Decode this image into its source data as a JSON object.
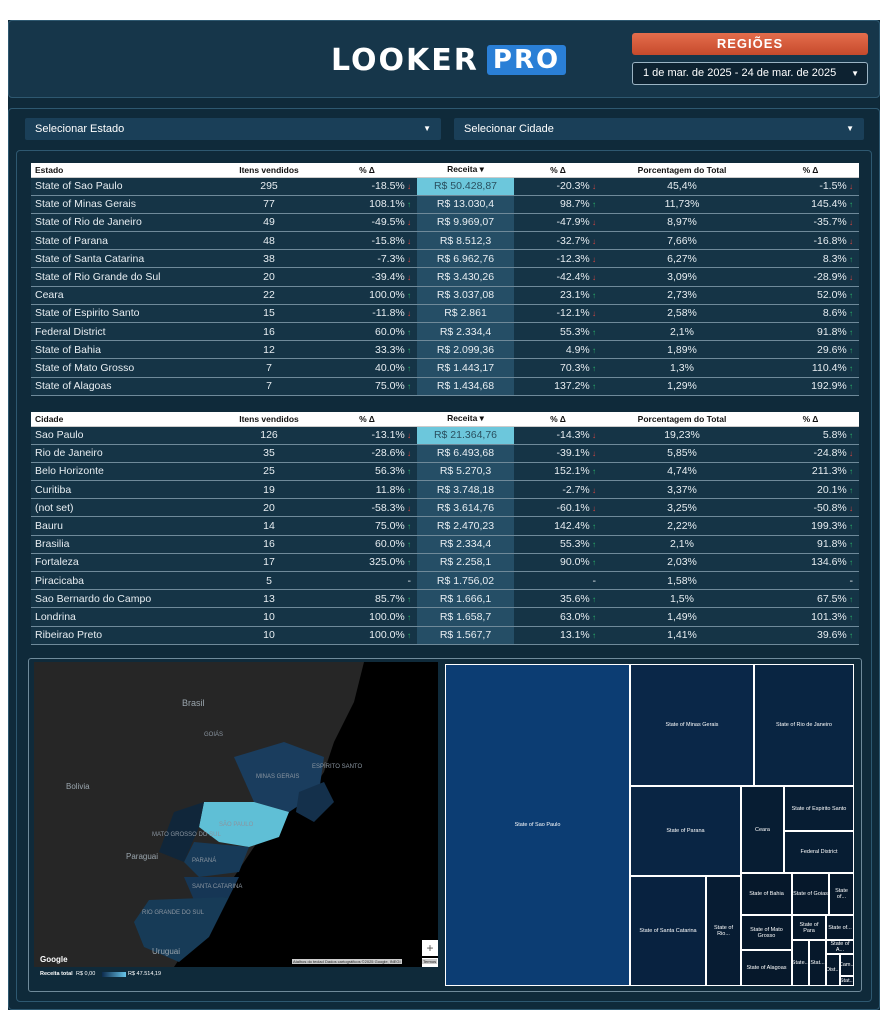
{
  "header": {
    "logo_main": "LOOKER",
    "logo_badge": "PRO",
    "regions_label": "REGIÕES",
    "date_range": "1 de mar. de 2025 - 24 de mar. de 2025"
  },
  "filters": {
    "state_select": "Selecionar Estado",
    "city_select": "Selecionar Cidade"
  },
  "states_table": {
    "columns": [
      "Estado",
      "Itens vendidos",
      "% Δ",
      "Receita ▾",
      "% Δ",
      "Porcentagem do Total",
      "% Δ"
    ],
    "rows": [
      {
        "name": "State of Sao Paulo",
        "items": "295",
        "d1": "-18.5%",
        "d1_dir": "down",
        "revenue": "R$ 50.428,87",
        "d2": "-20.3%",
        "d2_dir": "down",
        "pct": "45,4%",
        "d3": "-1.5%",
        "d3_dir": "down"
      },
      {
        "name": "State of Minas Gerais",
        "items": "77",
        "d1": "108.1%",
        "d1_dir": "up",
        "revenue": "R$ 13.030,4",
        "d2": "98.7%",
        "d2_dir": "up",
        "pct": "11,73%",
        "d3": "145.4%",
        "d3_dir": "up"
      },
      {
        "name": "State of Rio de Janeiro",
        "items": "49",
        "d1": "-49.5%",
        "d1_dir": "down",
        "revenue": "R$ 9.969,07",
        "d2": "-47.9%",
        "d2_dir": "down",
        "pct": "8,97%",
        "d3": "-35.7%",
        "d3_dir": "down"
      },
      {
        "name": "State of Parana",
        "items": "48",
        "d1": "-15.8%",
        "d1_dir": "down",
        "revenue": "R$ 8.512,3",
        "d2": "-32.7%",
        "d2_dir": "down",
        "pct": "7,66%",
        "d3": "-16.8%",
        "d3_dir": "down"
      },
      {
        "name": "State of Santa Catarina",
        "items": "38",
        "d1": "-7.3%",
        "d1_dir": "down",
        "revenue": "R$ 6.962,76",
        "d2": "-12.3%",
        "d2_dir": "down",
        "pct": "6,27%",
        "d3": "8.3%",
        "d3_dir": "up"
      },
      {
        "name": "State of Rio Grande do Sul",
        "items": "20",
        "d1": "-39.4%",
        "d1_dir": "down",
        "revenue": "R$ 3.430,26",
        "d2": "-42.4%",
        "d2_dir": "down",
        "pct": "3,09%",
        "d3": "-28.9%",
        "d3_dir": "down"
      },
      {
        "name": "Ceara",
        "items": "22",
        "d1": "100.0%",
        "d1_dir": "up",
        "revenue": "R$ 3.037,08",
        "d2": "23.1%",
        "d2_dir": "up",
        "pct": "2,73%",
        "d3": "52.0%",
        "d3_dir": "up"
      },
      {
        "name": "State of Espirito Santo",
        "items": "15",
        "d1": "-11.8%",
        "d1_dir": "down",
        "revenue": "R$ 2.861",
        "d2": "-12.1%",
        "d2_dir": "down",
        "pct": "2,58%",
        "d3": "8.6%",
        "d3_dir": "up"
      },
      {
        "name": "Federal District",
        "items": "16",
        "d1": "60.0%",
        "d1_dir": "up",
        "revenue": "R$ 2.334,4",
        "d2": "55.3%",
        "d2_dir": "up",
        "pct": "2,1%",
        "d3": "91.8%",
        "d3_dir": "up"
      },
      {
        "name": "State of Bahia",
        "items": "12",
        "d1": "33.3%",
        "d1_dir": "up",
        "revenue": "R$ 2.099,36",
        "d2": "4.9%",
        "d2_dir": "up",
        "pct": "1,89%",
        "d3": "29.6%",
        "d3_dir": "up"
      },
      {
        "name": "State of Mato Grosso",
        "items": "7",
        "d1": "40.0%",
        "d1_dir": "up",
        "revenue": "R$ 1.443,17",
        "d2": "70.3%",
        "d2_dir": "up",
        "pct": "1,3%",
        "d3": "110.4%",
        "d3_dir": "up"
      },
      {
        "name": "State of Alagoas",
        "items": "7",
        "d1": "75.0%",
        "d1_dir": "up",
        "revenue": "R$ 1.434,68",
        "d2": "137.2%",
        "d2_dir": "up",
        "pct": "1,29%",
        "d3": "192.9%",
        "d3_dir": "up"
      }
    ]
  },
  "cities_table": {
    "columns": [
      "Cidade",
      "Itens vendidos",
      "% Δ",
      "Receita ▾",
      "% Δ",
      "Porcentagem do Total",
      "% Δ"
    ],
    "rows": [
      {
        "name": "Sao Paulo",
        "items": "126",
        "d1": "-13.1%",
        "d1_dir": "down",
        "revenue": "R$ 21.364,76",
        "d2": "-14.3%",
        "d2_dir": "down",
        "pct": "19,23%",
        "d3": "5.8%",
        "d3_dir": "up"
      },
      {
        "name": "Rio de Janeiro",
        "items": "35",
        "d1": "-28.6%",
        "d1_dir": "down",
        "revenue": "R$ 6.493,68",
        "d2": "-39.1%",
        "d2_dir": "down",
        "pct": "5,85%",
        "d3": "-24.8%",
        "d3_dir": "down"
      },
      {
        "name": "Belo Horizonte",
        "items": "25",
        "d1": "56.3%",
        "d1_dir": "up",
        "revenue": "R$ 5.270,3",
        "d2": "152.1%",
        "d2_dir": "up",
        "pct": "4,74%",
        "d3": "211.3%",
        "d3_dir": "up"
      },
      {
        "name": "Curitiba",
        "items": "19",
        "d1": "11.8%",
        "d1_dir": "up",
        "revenue": "R$ 3.748,18",
        "d2": "-2.7%",
        "d2_dir": "down",
        "pct": "3,37%",
        "d3": "20.1%",
        "d3_dir": "up"
      },
      {
        "name": "(not set)",
        "items": "20",
        "d1": "-58.3%",
        "d1_dir": "down",
        "revenue": "R$ 3.614,76",
        "d2": "-60.1%",
        "d2_dir": "down",
        "pct": "3,25%",
        "d3": "-50.8%",
        "d3_dir": "down"
      },
      {
        "name": "Bauru",
        "items": "14",
        "d1": "75.0%",
        "d1_dir": "up",
        "revenue": "R$ 2.470,23",
        "d2": "142.4%",
        "d2_dir": "up",
        "pct": "2,22%",
        "d3": "199.3%",
        "d3_dir": "up"
      },
      {
        "name": "Brasilia",
        "items": "16",
        "d1": "60.0%",
        "d1_dir": "up",
        "revenue": "R$ 2.334,4",
        "d2": "55.3%",
        "d2_dir": "up",
        "pct": "2,1%",
        "d3": "91.8%",
        "d3_dir": "up"
      },
      {
        "name": "Fortaleza",
        "items": "17",
        "d1": "325.0%",
        "d1_dir": "up",
        "revenue": "R$ 2.258,1",
        "d2": "90.0%",
        "d2_dir": "up",
        "pct": "2,03%",
        "d3": "134.6%",
        "d3_dir": "up"
      },
      {
        "name": "Piracicaba",
        "items": "5",
        "d1": "-",
        "d1_dir": "",
        "revenue": "R$ 1.756,02",
        "d2": "-",
        "d2_dir": "",
        "pct": "1,58%",
        "d3": "-",
        "d3_dir": ""
      },
      {
        "name": "Sao Bernardo do Campo",
        "items": "13",
        "d1": "85.7%",
        "d1_dir": "up",
        "revenue": "R$ 1.666,1",
        "d2": "35.6%",
        "d2_dir": "up",
        "pct": "1,5%",
        "d3": "67.5%",
        "d3_dir": "up"
      },
      {
        "name": "Londrina",
        "items": "10",
        "d1": "100.0%",
        "d1_dir": "up",
        "revenue": "R$ 1.658,7",
        "d2": "63.0%",
        "d2_dir": "up",
        "pct": "1,49%",
        "d3": "101.3%",
        "d3_dir": "up"
      },
      {
        "name": "Ribeirao Preto",
        "items": "10",
        "d1": "100.0%",
        "d1_dir": "up",
        "revenue": "R$ 1.567,7",
        "d2": "13.1%",
        "d2_dir": "up",
        "pct": "1,41%",
        "d3": "39.6%",
        "d3_dir": "up"
      }
    ]
  },
  "map": {
    "labels": [
      "Brasil",
      "Bolivia",
      "Paraguai",
      "Uruguai",
      "MINAS GERAIS",
      "SÃO PAULO",
      "PARANÁ",
      "RIO GRANDE DO SUL",
      "SANTA CATARINA",
      "ESPÍRITO SANTO",
      "MATO GROSSO DO SUL",
      "GOIÁS"
    ],
    "google_label": "Google",
    "attribution": [
      "Atalhos do teclado",
      "Dados cartográficos ©2025 Google, INEGI",
      "Termos"
    ],
    "zoom_in": "+",
    "zoom_out": "−",
    "legend_title": "Receita total",
    "legend_min": "R$ 0,00",
    "legend_max": "R$ 47.514,19"
  },
  "treemap": {
    "tiles": [
      "State of Sao Paulo",
      "State of Minas Gerais",
      "State of Rio de Janeiro",
      "State of Parana",
      "Ceara",
      "State of Espirito Santo",
      "Federal District",
      "State of Santa Catarina",
      "State of Rio...",
      "State of Bahia",
      "State of Goias",
      "State of...",
      "State of Mato Grosso",
      "State of Para",
      "State of...",
      "State of A...",
      "State of Alagoas",
      "State...",
      "Stat...",
      "Dist...",
      "Cam...",
      "Stat..."
    ]
  }
}
